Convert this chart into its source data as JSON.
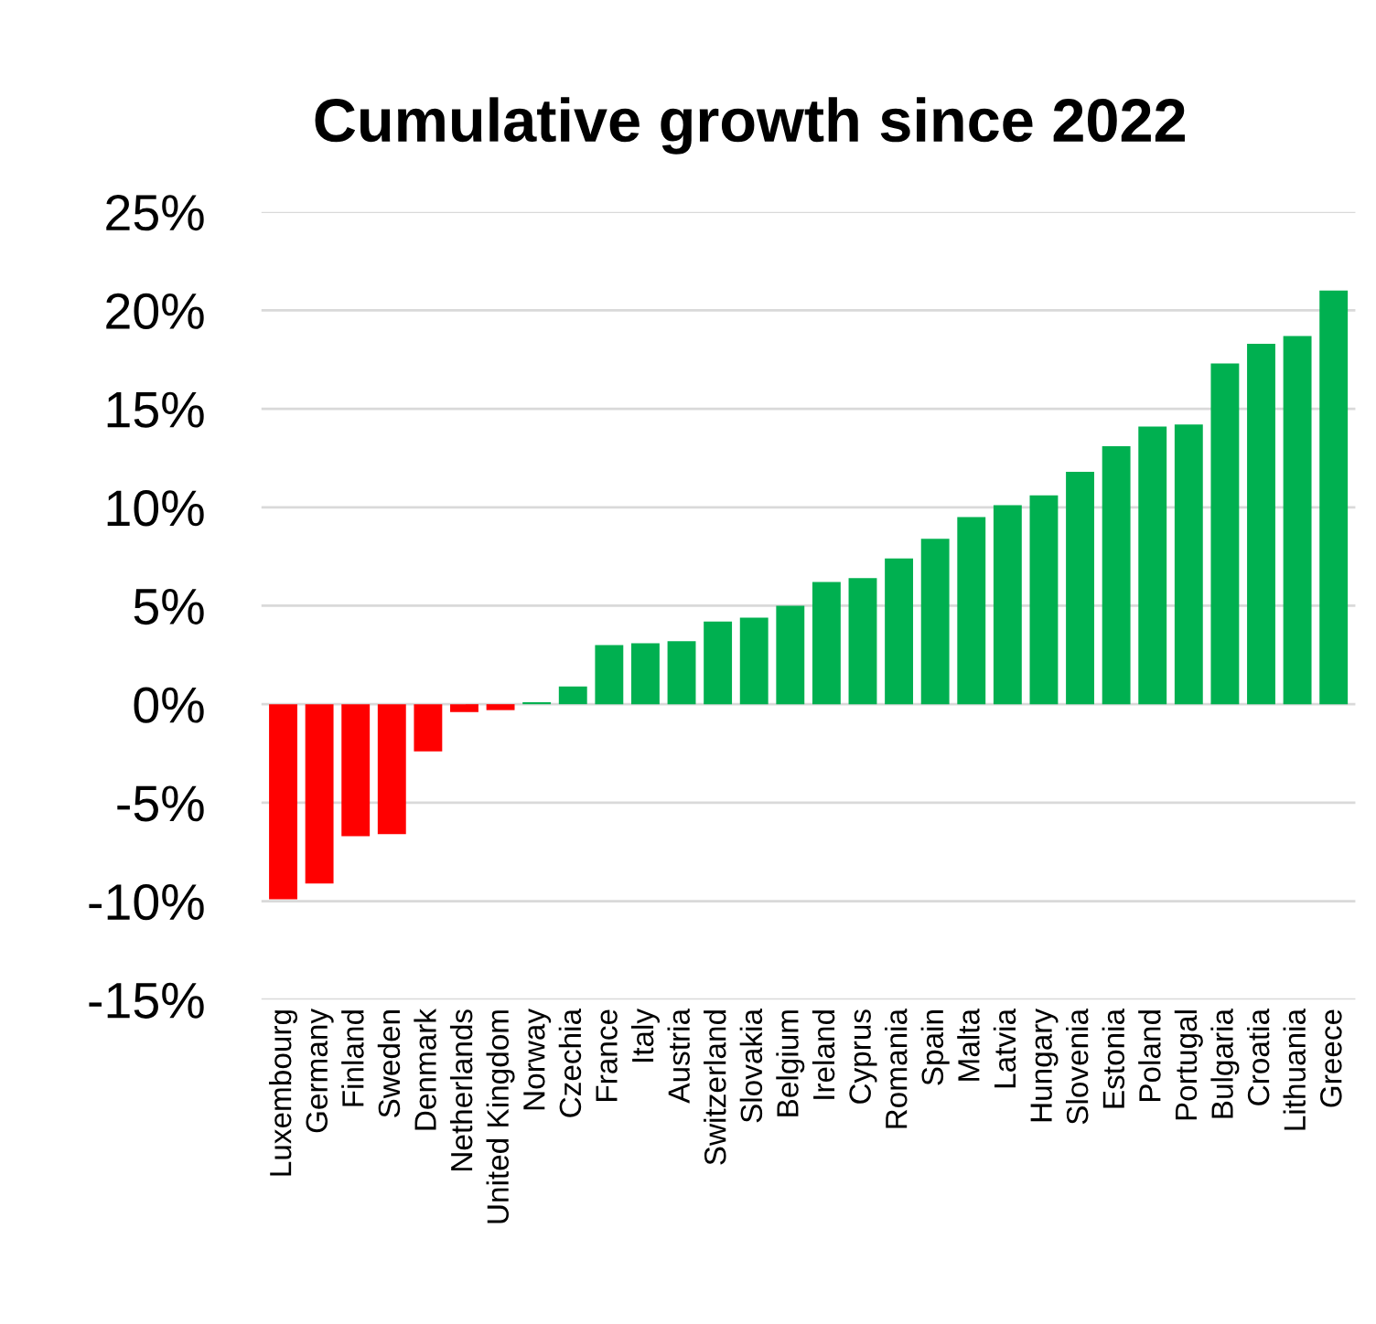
{
  "chart_data": {
    "type": "bar",
    "title": "Cumulative growth since 2022",
    "categories": [
      "Luxembourg",
      "Germany",
      "Finland",
      "Sweden",
      "Denmark",
      "Netherlands",
      "United Kingdom",
      "Norway",
      "Czechia",
      "France",
      "Italy",
      "Austria",
      "Switzerland",
      "Slovakia",
      "Belgium",
      "Ireland",
      "Cyprus",
      "Romania",
      "Spain",
      "Malta",
      "Latvia",
      "Hungary",
      "Slovenia",
      "Estonia",
      "Poland",
      "Portugal",
      "Bulgaria",
      "Croatia",
      "Lithuania",
      "Greece"
    ],
    "values": [
      -9.9,
      -9.1,
      -6.7,
      -6.6,
      -2.4,
      -0.4,
      -0.3,
      0.1,
      0.9,
      3.0,
      3.1,
      3.2,
      4.2,
      4.4,
      5.0,
      6.2,
      6.4,
      7.4,
      8.4,
      9.5,
      10.1,
      10.6,
      11.8,
      13.1,
      14.1,
      14.2,
      17.3,
      18.3,
      18.7,
      21.0
    ],
    "colors": [
      "#ff0000",
      "#ff0000",
      "#ff0000",
      "#ff0000",
      "#ff0000",
      "#ff0000",
      "#ff0000",
      "#00b050",
      "#00b050",
      "#00b050",
      "#00b050",
      "#00b050",
      "#00b050",
      "#00b050",
      "#00b050",
      "#00b050",
      "#00b050",
      "#00b050",
      "#00b050",
      "#00b050",
      "#00b050",
      "#00b050",
      "#00b050",
      "#00b050",
      "#00b050",
      "#00b050",
      "#00b050",
      "#00b050",
      "#00b050",
      "#00b050"
    ],
    "ylim": [
      -15,
      25
    ],
    "yticks": [
      {
        "value": -15,
        "label": "-15%"
      },
      {
        "value": -10,
        "label": "-10%"
      },
      {
        "value": -5,
        "label": "-5%"
      },
      {
        "value": 0,
        "label": "0%"
      },
      {
        "value": 5,
        "label": "5%"
      },
      {
        "value": 10,
        "label": "10%"
      },
      {
        "value": 15,
        "label": "15%"
      },
      {
        "value": 20,
        "label": "20%"
      },
      {
        "value": 25,
        "label": "25%"
      }
    ],
    "grid": "y",
    "legend": false
  }
}
